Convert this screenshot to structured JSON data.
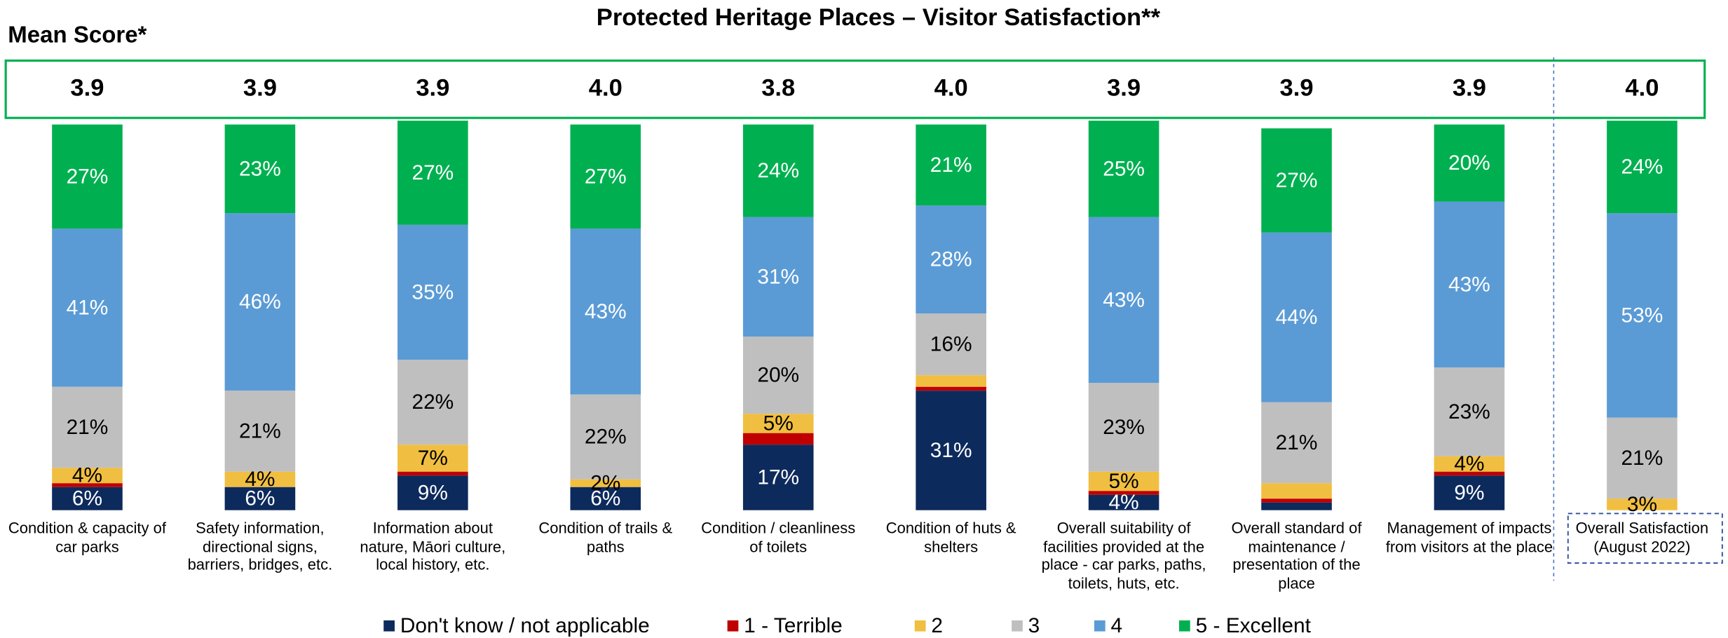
{
  "chart_data": {
    "type": "stacked_bar",
    "title": "Protected Heritage Places – Visitor Satisfaction**",
    "mean_score_title": "Mean Score*",
    "mean_scores": [
      "3.9",
      "3.9",
      "3.9",
      "4.0",
      "3.8",
      "4.0",
      "3.9",
      "3.9",
      "3.9",
      "4.0"
    ],
    "categories": [
      "Condition & capacity of car parks",
      "Safety information, directional signs, barriers, bridges, etc.",
      "Information about nature, Māori culture, local history, etc.",
      "Condition of trails & paths",
      "Condition / cleanliness of toilets",
      "Condition of huts & shelters",
      "Overall suitability of facilities provided at the place - car parks, paths, toilets, huts, etc.",
      "Overall standard of maintenance / presentation of the place",
      "Management of impacts from visitors at the place",
      "Overall Satisfaction (August 2022)"
    ],
    "ylim": [
      0,
      100
    ],
    "series": [
      {
        "name": "Don't know / not applicable",
        "color": "#0d2a5c",
        "label_color": "#ffffff",
        "values": [
          6,
          6,
          9,
          6,
          17,
          31,
          4,
          2,
          9,
          0
        ],
        "value_labels": [
          "6%",
          "6%",
          "9%",
          "6%",
          "17%",
          "31%",
          "4%",
          null,
          "9%",
          null
        ]
      },
      {
        "name": "1 - Terrible",
        "color": "#c00000",
        "label_color": "#ffffff",
        "values": [
          1,
          0,
          1,
          0,
          3,
          1,
          1,
          1,
          1,
          0
        ],
        "value_labels": [
          null,
          null,
          null,
          null,
          null,
          null,
          null,
          null,
          null,
          null
        ]
      },
      {
        "name": "2",
        "color": "#f0be41",
        "label_color": "#000000",
        "values": [
          4,
          4,
          7,
          2,
          5,
          3,
          5,
          4,
          4,
          3
        ],
        "value_labels": [
          "4%",
          "4%",
          "7%",
          "2%",
          "5%",
          null,
          "5%",
          null,
          "4%",
          "3%"
        ]
      },
      {
        "name": "3",
        "color": "#bfbfbf",
        "label_color": "#000000",
        "values": [
          21,
          21,
          22,
          22,
          20,
          16,
          23,
          21,
          23,
          21
        ],
        "value_labels": [
          "21%",
          "21%",
          "22%",
          "22%",
          "20%",
          "16%",
          "23%",
          "21%",
          "23%",
          "21%"
        ]
      },
      {
        "name": "4",
        "color": "#5b9bd5",
        "label_color": "#ffffff",
        "values": [
          41,
          46,
          35,
          43,
          31,
          28,
          43,
          44,
          43,
          53
        ],
        "value_labels": [
          "41%",
          "46%",
          "35%",
          "43%",
          "31%",
          "28%",
          "43%",
          "44%",
          "43%",
          "53%"
        ]
      },
      {
        "name": "5 - Excellent",
        "color": "#00b050",
        "label_color": "#ffffff",
        "values": [
          27,
          23,
          27,
          27,
          24,
          21,
          25,
          27,
          20,
          24
        ],
        "value_labels": [
          "27%",
          "23%",
          "27%",
          "27%",
          "24%",
          "21%",
          "25%",
          "27%",
          "20%",
          "24%"
        ]
      }
    ]
  }
}
